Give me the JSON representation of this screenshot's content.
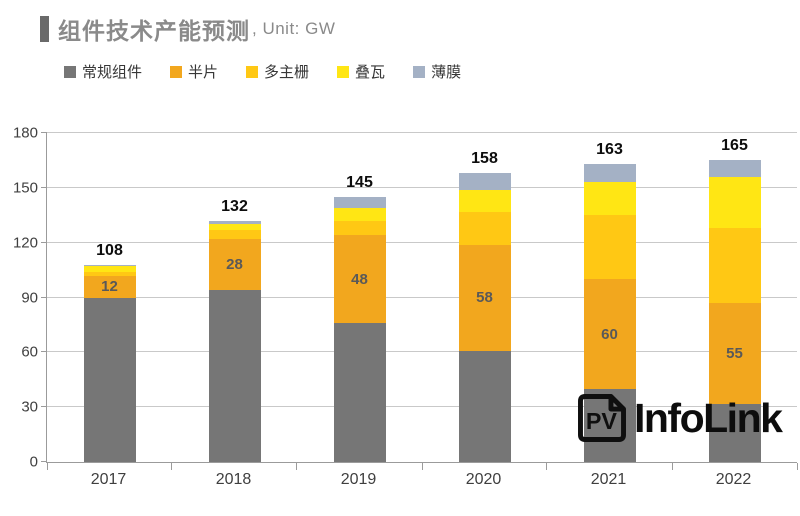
{
  "header": {
    "title": "组件技术产能预测",
    "unit": ", Unit: GW"
  },
  "legend": [
    {
      "label": "常规组件",
      "color": "#767676"
    },
    {
      "label": "半片",
      "color": "#f2a71e"
    },
    {
      "label": "多主栅",
      "color": "#ffc814"
    },
    {
      "label": "叠瓦",
      "color": "#ffe614"
    },
    {
      "label": "薄膜",
      "color": "#a4b1c5"
    }
  ],
  "chart_data": {
    "type": "bar",
    "stacked": true,
    "title": "组件技术产能预测",
    "unit": "GW",
    "categories": [
      "2017",
      "2018",
      "2019",
      "2020",
      "2021",
      "2022"
    ],
    "series": [
      {
        "name": "常规组件",
        "color": "#767676",
        "values": [
          90,
          94,
          76,
          61,
          40,
          32
        ]
      },
      {
        "name": "半片",
        "color": "#f2a71e",
        "values": [
          12,
          28,
          48,
          58,
          60,
          55
        ],
        "show_labels": true
      },
      {
        "name": "多主栅",
        "color": "#ffc814",
        "values": [
          2,
          5,
          8,
          18,
          35,
          41
        ]
      },
      {
        "name": "叠瓦",
        "color": "#ffe614",
        "values": [
          3,
          3,
          7,
          12,
          18,
          28
        ]
      },
      {
        "name": "薄膜",
        "color": "#a4b1c5",
        "values": [
          1,
          2,
          6,
          9,
          10,
          9
        ]
      }
    ],
    "totals": [
      108,
      132,
      145,
      158,
      163,
      165
    ],
    "segment_labels_series": "半片",
    "segment_labels": [
      12,
      28,
      48,
      58,
      60,
      55
    ],
    "ylim": [
      0,
      180
    ],
    "yticks": [
      0,
      30,
      60,
      90,
      120,
      150,
      180
    ],
    "grid": true,
    "legend_position": "top"
  },
  "logo": {
    "icon_text": "PV",
    "name": "InfoLink"
  }
}
